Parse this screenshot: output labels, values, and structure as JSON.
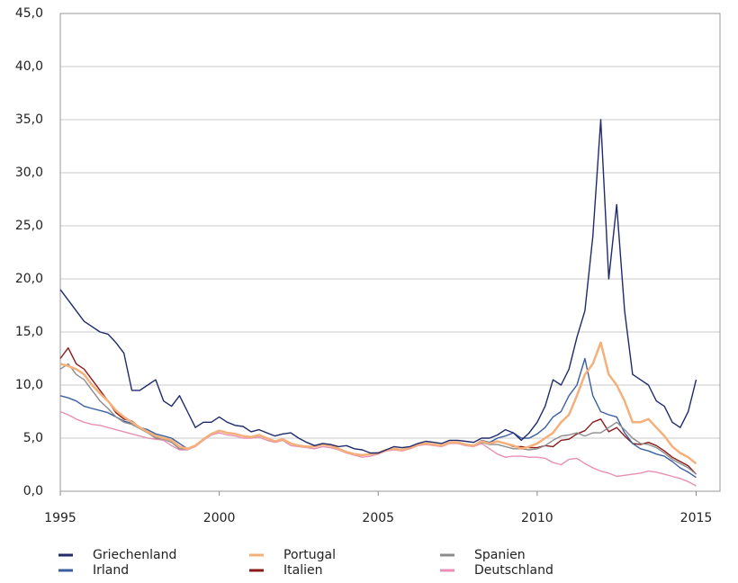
{
  "chart_data": {
    "type": "line",
    "x": [
      1995,
      1995.25,
      1995.5,
      1995.75,
      1996,
      1996.25,
      1996.5,
      1996.75,
      1997,
      1997.25,
      1997.5,
      1997.75,
      1998,
      1998.25,
      1998.5,
      1998.75,
      1999,
      1999.25,
      1999.5,
      1999.75,
      2000,
      2000.25,
      2000.5,
      2000.75,
      2001,
      2001.25,
      2001.5,
      2001.75,
      2002,
      2002.25,
      2002.5,
      2002.75,
      2003,
      2003.25,
      2003.5,
      2003.75,
      2004,
      2004.25,
      2004.5,
      2004.75,
      2005,
      2005.25,
      2005.5,
      2005.75,
      2006,
      2006.25,
      2006.5,
      2006.75,
      2007,
      2007.25,
      2007.5,
      2007.75,
      2008,
      2008.25,
      2008.5,
      2008.75,
      2009,
      2009.25,
      2009.5,
      2009.75,
      2010,
      2010.25,
      2010.5,
      2010.75,
      2011,
      2011.25,
      2011.5,
      2011.75,
      2012,
      2012.25,
      2012.5,
      2012.75,
      2013,
      2013.25,
      2013.5,
      2013.75,
      2014,
      2014.25,
      2014.5,
      2014.75,
      2015
    ],
    "series": [
      {
        "name": "Griechenland",
        "color": "#1f2a6b",
        "values": [
          19,
          18,
          17,
          16,
          15.5,
          15,
          14.8,
          14,
          13,
          9.5,
          9.5,
          10,
          10.5,
          8.5,
          8,
          9,
          7.5,
          6,
          6.5,
          6.5,
          7,
          6.5,
          6.2,
          6.1,
          5.6,
          5.8,
          5.5,
          5.2,
          5.4,
          5.5,
          5.0,
          4.6,
          4.3,
          4.5,
          4.4,
          4.2,
          4.3,
          4.0,
          3.9,
          3.6,
          3.6,
          3.9,
          4.2,
          4.1,
          4.2,
          4.5,
          4.7,
          4.6,
          4.5,
          4.8,
          4.8,
          4.7,
          4.6,
          5.0,
          5.0,
          5.3,
          5.8,
          5.5,
          4.8,
          5.5,
          6.5,
          8.0,
          10.5,
          10.0,
          11.5,
          14.5,
          17.0,
          24.0,
          35.0,
          20.0,
          27.0,
          17.0,
          11.0,
          10.5,
          10.0,
          8.5,
          8.0,
          6.5,
          6.0,
          7.5,
          10.5
        ]
      },
      {
        "name": "Portugal",
        "color": "#f5b07a",
        "values": [
          12.0,
          11.8,
          11.5,
          11.0,
          10.0,
          9.2,
          8.5,
          7.6,
          7.0,
          6.5,
          6.0,
          5.6,
          5.2,
          5.0,
          4.8,
          4.2,
          4.0,
          4.3,
          4.9,
          5.4,
          5.7,
          5.5,
          5.4,
          5.2,
          5.1,
          5.3,
          5.0,
          4.7,
          4.9,
          4.5,
          4.3,
          4.2,
          4.2,
          4.4,
          4.3,
          4.0,
          3.7,
          3.5,
          3.4,
          3.5,
          3.6,
          3.9,
          4.0,
          3.9,
          4.1,
          4.4,
          4.5,
          4.4,
          4.3,
          4.6,
          4.6,
          4.4,
          4.3,
          4.7,
          4.5,
          4.7,
          4.5,
          4.3,
          4.0,
          4.2,
          4.5,
          5.0,
          5.5,
          6.5,
          7.2,
          9.0,
          11.0,
          12.0,
          14.0,
          11.0,
          10.0,
          8.5,
          6.5,
          6.5,
          6.8,
          6.0,
          5.2,
          4.2,
          3.6,
          3.2,
          2.6
        ]
      },
      {
        "name": "Spanien",
        "color": "#8c8c8c",
        "values": [
          11.5,
          12.0,
          11.0,
          10.5,
          9.5,
          8.5,
          7.8,
          7.0,
          6.5,
          6.3,
          5.9,
          5.5,
          5.0,
          4.9,
          4.6,
          4.0,
          4.0,
          4.3,
          4.9,
          5.4,
          5.7,
          5.5,
          5.4,
          5.2,
          5.1,
          5.3,
          5.0,
          4.7,
          4.9,
          4.5,
          4.3,
          4.2,
          4.2,
          4.4,
          4.3,
          4.0,
          3.7,
          3.5,
          3.4,
          3.5,
          3.6,
          3.9,
          4.0,
          3.9,
          4.1,
          4.4,
          4.5,
          4.4,
          4.3,
          4.6,
          4.6,
          4.4,
          4.3,
          4.6,
          4.4,
          4.4,
          4.2,
          4.0,
          4.0,
          3.9,
          4.0,
          4.3,
          4.8,
          5.2,
          5.3,
          5.5,
          5.2,
          5.5,
          5.5,
          6.0,
          6.5,
          5.8,
          5.0,
          4.5,
          4.4,
          4.1,
          3.6,
          3.0,
          2.6,
          2.2,
          1.6
        ]
      },
      {
        "name": "Irland",
        "color": "#3a5fa0",
        "values": [
          9.0,
          8.8,
          8.5,
          8.0,
          7.8,
          7.6,
          7.4,
          7.0,
          6.6,
          6.4,
          6.0,
          5.8,
          5.4,
          5.2,
          5.0,
          4.5,
          4.0,
          4.3,
          4.9,
          5.4,
          5.7,
          5.5,
          5.4,
          5.2,
          5.1,
          5.3,
          5.0,
          4.7,
          4.9,
          4.5,
          4.3,
          4.2,
          4.2,
          4.4,
          4.3,
          4.0,
          3.7,
          3.5,
          3.4,
          3.5,
          3.6,
          3.9,
          4.0,
          3.9,
          4.1,
          4.4,
          4.5,
          4.4,
          4.3,
          4.6,
          4.6,
          4.4,
          4.3,
          4.8,
          4.6,
          5.0,
          5.2,
          5.5,
          5.0,
          5.0,
          5.4,
          6.0,
          7.0,
          7.5,
          9.0,
          10.0,
          12.5,
          9.0,
          7.5,
          7.2,
          7.0,
          5.5,
          4.5,
          4.0,
          3.8,
          3.5,
          3.3,
          2.8,
          2.2,
          1.8,
          1.3
        ]
      },
      {
        "name": "Italien",
        "color": "#8b1a1a",
        "values": [
          12.5,
          13.5,
          12.0,
          11.5,
          10.5,
          9.5,
          8.5,
          7.4,
          6.8,
          6.6,
          6.0,
          5.6,
          5.0,
          5.0,
          4.8,
          4.2,
          4.0,
          4.3,
          4.9,
          5.4,
          5.7,
          5.5,
          5.4,
          5.2,
          5.1,
          5.3,
          5.0,
          4.7,
          4.9,
          4.5,
          4.3,
          4.2,
          4.2,
          4.4,
          4.3,
          4.0,
          3.7,
          3.5,
          3.4,
          3.5,
          3.6,
          3.9,
          4.0,
          3.9,
          4.1,
          4.4,
          4.5,
          4.4,
          4.3,
          4.6,
          4.6,
          4.4,
          4.3,
          4.7,
          4.6,
          4.7,
          4.5,
          4.2,
          4.2,
          4.1,
          4.1,
          4.3,
          4.2,
          4.8,
          4.9,
          5.4,
          5.7,
          6.5,
          6.8,
          5.6,
          6.0,
          5.2,
          4.5,
          4.4,
          4.6,
          4.3,
          3.8,
          3.2,
          2.8,
          2.4,
          1.6
        ]
      },
      {
        "name": "Deutschland",
        "color": "#e88fb4",
        "values": [
          7.5,
          7.2,
          6.8,
          6.5,
          6.3,
          6.2,
          6.0,
          5.8,
          5.6,
          5.4,
          5.2,
          5.0,
          4.9,
          4.8,
          4.3,
          3.9,
          3.9,
          4.2,
          4.8,
          5.3,
          5.5,
          5.3,
          5.2,
          5.0,
          5.0,
          5.1,
          4.8,
          4.6,
          4.8,
          4.3,
          4.2,
          4.1,
          4.0,
          4.2,
          4.1,
          3.9,
          3.6,
          3.4,
          3.2,
          3.3,
          3.5,
          3.8,
          3.9,
          3.8,
          4.0,
          4.3,
          4.4,
          4.3,
          4.2,
          4.5,
          4.5,
          4.3,
          4.2,
          4.5,
          4.0,
          3.5,
          3.2,
          3.3,
          3.3,
          3.2,
          3.2,
          3.1,
          2.7,
          2.5,
          3.0,
          3.1,
          2.6,
          2.2,
          1.9,
          1.7,
          1.4,
          1.5,
          1.6,
          1.7,
          1.9,
          1.8,
          1.6,
          1.4,
          1.2,
          0.9,
          0.5
        ]
      }
    ],
    "xlim": [
      1995,
      2015.75
    ],
    "xticks": [
      1995,
      2000,
      2005,
      2010,
      2015
    ],
    "ylim": [
      0,
      45
    ],
    "yticks": [
      {
        "value": 0,
        "label": "0,0"
      },
      {
        "value": 5,
        "label": "5,0"
      },
      {
        "value": 10,
        "label": "10,0"
      },
      {
        "value": 15,
        "label": "15,0"
      },
      {
        "value": 20,
        "label": "20,0"
      },
      {
        "value": 25,
        "label": "25,0"
      },
      {
        "value": 30,
        "label": "30,0"
      },
      {
        "value": 35,
        "label": "35,0"
      },
      {
        "value": 40,
        "label": "40,0"
      },
      {
        "value": 45,
        "label": "45,0"
      }
    ],
    "grid": true
  }
}
